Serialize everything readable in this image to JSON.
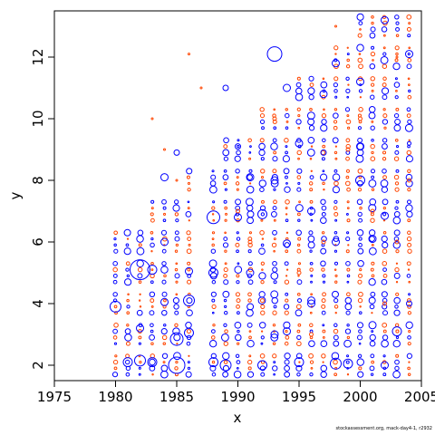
{
  "chart_data": {
    "type": "scatter",
    "title": "",
    "xlabel": "x",
    "ylabel": "y",
    "xlim": [
      1975,
      2005
    ],
    "ylim": [
      1.5,
      13.5
    ],
    "xticks": [
      1975,
      1980,
      1985,
      1990,
      1995,
      2000,
      2005
    ],
    "yticks": [
      2,
      4,
      6,
      8,
      10,
      12
    ],
    "grid": false,
    "marker": "circle",
    "size_encodes": "value magnitude",
    "colors": {
      "positive": "#0000ff",
      "negative": "#ff4500"
    },
    "years": [
      1980,
      1981,
      1982,
      1983,
      1984,
      1985,
      1986,
      1988,
      1989,
      1990,
      1991,
      1992,
      1993,
      1994,
      1995,
      1996,
      1997,
      1998,
      1999,
      2000,
      2001,
      2002,
      2003,
      2004
    ],
    "ages": [
      2,
      3,
      4,
      5,
      6,
      7,
      8,
      9,
      10,
      11,
      12,
      13
    ],
    "series": [
      {
        "sign": "positive",
        "points": [
          [
            1980,
            3.9,
            6
          ],
          [
            1981,
            2.1,
            5
          ],
          [
            1982,
            5.1,
            11
          ],
          [
            1982,
            2.15,
            6
          ],
          [
            1982,
            3.2,
            4
          ],
          [
            1983,
            5.1,
            5
          ],
          [
            1983,
            2.1,
            5
          ],
          [
            1984,
            8.1,
            4
          ],
          [
            1984,
            6.0,
            4
          ],
          [
            1984,
            4.05,
            4
          ],
          [
            1985,
            2.0,
            9
          ],
          [
            1985,
            2.85,
            7
          ],
          [
            1985,
            8.9,
            3
          ],
          [
            1986,
            4.1,
            6
          ],
          [
            1986,
            3.05,
            5
          ],
          [
            1986,
            5.05,
            4
          ],
          [
            1988,
            6.8,
            7
          ],
          [
            1988,
            5.0,
            5
          ],
          [
            1988,
            2.1,
            5
          ],
          [
            1989,
            11.0,
            3
          ],
          [
            1989,
            2.0,
            6
          ],
          [
            1990,
            6.8,
            4
          ],
          [
            1990,
            9.1,
            3
          ],
          [
            1991,
            8.1,
            4
          ],
          [
            1991,
            5.0,
            4
          ],
          [
            1992,
            6.9,
            5
          ],
          [
            1992,
            2.0,
            5
          ],
          [
            1993,
            12.1,
            8
          ],
          [
            1993,
            8.0,
            4
          ],
          [
            1993,
            3.0,
            4
          ],
          [
            1994,
            11.0,
            4
          ],
          [
            1994,
            5.95,
            4
          ],
          [
            1994,
            3.1,
            4
          ],
          [
            1995,
            2.1,
            5
          ],
          [
            1995,
            9.2,
            4
          ],
          [
            1996,
            7.0,
            4
          ],
          [
            1996,
            4.0,
            4
          ],
          [
            1997,
            10.8,
            4
          ],
          [
            1997,
            8.9,
            3
          ],
          [
            1998,
            11.8,
            4
          ],
          [
            1998,
            2.05,
            6
          ],
          [
            1998,
            6.0,
            4
          ],
          [
            1999,
            2.05,
            5
          ],
          [
            2000,
            11.2,
            4
          ],
          [
            2000,
            8.0,
            5
          ],
          [
            2000,
            9.1,
            4
          ],
          [
            2001,
            6.1,
            4
          ],
          [
            2002,
            13.2,
            4
          ],
          [
            2002,
            6.85,
            4
          ],
          [
            2002,
            2.0,
            4
          ],
          [
            2003,
            3.1,
            5
          ],
          [
            2004,
            12.1,
            4
          ],
          [
            2004,
            4.0,
            3
          ],
          [
            2004,
            9.2,
            2
          ]
        ]
      },
      {
        "sign": "negative",
        "points": [
          [
            1983,
            10.0,
            1
          ],
          [
            1984,
            9.0,
            1
          ],
          [
            1985,
            8.0,
            1
          ],
          [
            1986,
            12.1,
            1
          ],
          [
            1987,
            11.0,
            1
          ],
          [
            1990,
            7.0,
            2
          ],
          [
            1991,
            6.0,
            2
          ],
          [
            1992,
            4.1,
            2
          ],
          [
            1993,
            10.0,
            2
          ],
          [
            1995,
            5.0,
            2
          ],
          [
            1996,
            3.0,
            2
          ],
          [
            1997,
            6.0,
            2
          ],
          [
            1998,
            13.0,
            1
          ],
          [
            1999,
            9.0,
            2
          ],
          [
            2000,
            10.0,
            2
          ],
          [
            2001,
            7.0,
            2
          ],
          [
            2002,
            4.0,
            2
          ],
          [
            2003,
            6.0,
            2
          ],
          [
            2003,
            12.0,
            1
          ],
          [
            2004,
            8.0,
            2
          ]
        ]
      }
    ]
  },
  "credit": "stockassessment.org, mack-day4-1, r2932"
}
